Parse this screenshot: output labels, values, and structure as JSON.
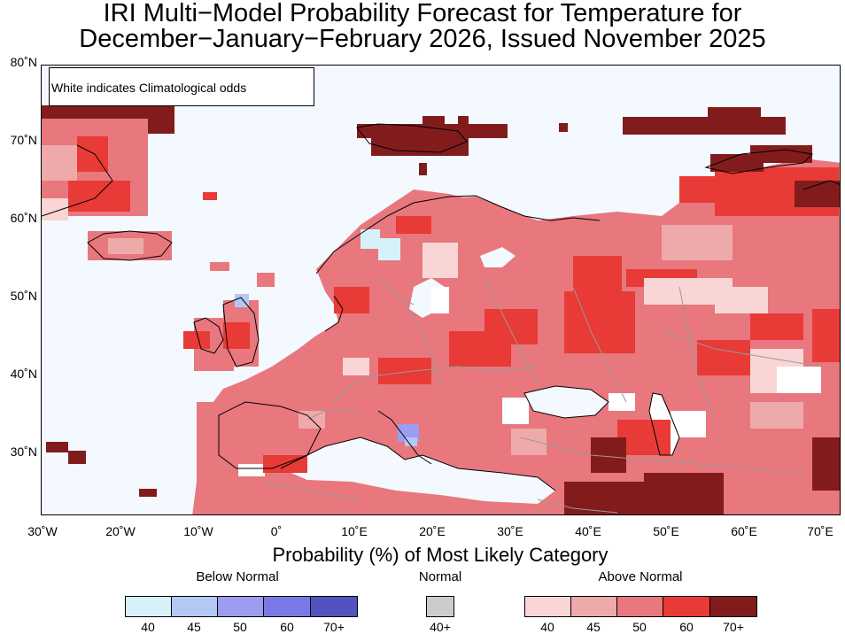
{
  "title": {
    "line1": "IRI Multi−Model Probability Forecast for Temperature for",
    "line2": "December−January−February 2026, Issued November 2025"
  },
  "map": {
    "note": "White indicates Climatological odds",
    "lat_ticks": [
      "80˚N",
      "70˚N",
      "60˚N",
      "50˚N",
      "40˚N",
      "30˚N"
    ],
    "lon_ticks": [
      "30˚W",
      "20˚W",
      "10˚W",
      "0˚",
      "10˚E",
      "20˚E",
      "30˚E",
      "40˚E",
      "50˚E",
      "60˚E",
      "70˚E"
    ],
    "colors": {
      "ocean": "#f4f9ff",
      "land_default": "#e8777e",
      "border": "#9a9a9a",
      "coast": "#000000"
    }
  },
  "legend": {
    "title": "Probability (%) of Most Likely Category",
    "groups": [
      {
        "name": "Below Normal",
        "swatches": [
          {
            "label": "40",
            "color": "#d6f2f8"
          },
          {
            "label": "45",
            "color": "#b3c8f4"
          },
          {
            "label": "50",
            "color": "#9c9cf0"
          },
          {
            "label": "60",
            "color": "#7b78e8"
          },
          {
            "label": "70+",
            "color": "#5252c0"
          }
        ]
      },
      {
        "name": "Normal",
        "swatches": [
          {
            "label": "40+",
            "color": "#cccccc"
          }
        ]
      },
      {
        "name": "Above Normal",
        "swatches": [
          {
            "label": "40",
            "color": "#f9d5d5"
          },
          {
            "label": "45",
            "color": "#eeaaab"
          },
          {
            "label": "50",
            "color": "#e8777e"
          },
          {
            "label": "60",
            "color": "#e83a36"
          },
          {
            "label": "70+",
            "color": "#821c1c"
          }
        ]
      }
    ]
  }
}
